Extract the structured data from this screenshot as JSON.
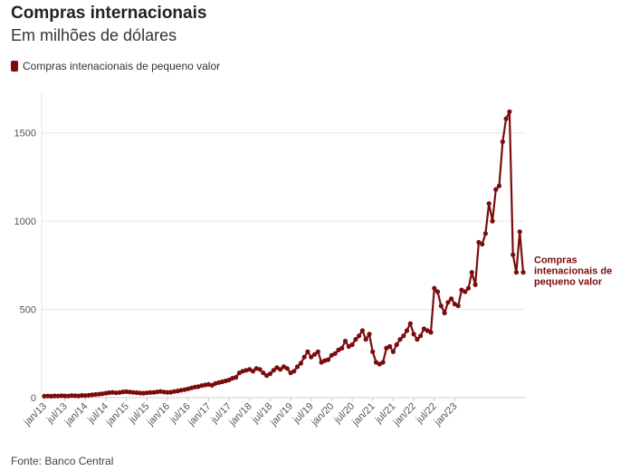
{
  "header": {
    "title": "Compras internacionais",
    "subtitle": "Em milhões de dólares"
  },
  "legend": {
    "label": "Compras intenacionais de pequeno valor"
  },
  "footer": {
    "source": "Fonte: Banco Central"
  },
  "colors": {
    "series": "#7a0c0c",
    "grid": "#e6e6e6",
    "axis": "#cccccc"
  },
  "chart_data": {
    "type": "line",
    "title": "Compras internacionais",
    "subtitle": "Em milhões de dólares",
    "xlabel": "",
    "ylabel": "",
    "ylim": [
      0,
      1750
    ],
    "y_ticks": [
      0,
      500,
      1000,
      1500
    ],
    "x_tick_labels": [
      "jan/13",
      "jul/13",
      "jan/14",
      "jul/14",
      "jan/15",
      "jul/15",
      "jan/16",
      "jul/16",
      "jan/17",
      "jul/17",
      "jan/18",
      "jul/18",
      "jan/19",
      "jul/19",
      "jan/20",
      "jul/20",
      "jan/21",
      "jul/21",
      "jan/22",
      "jul/22",
      "jan/23"
    ],
    "x_tick_month_index": [
      0,
      6,
      12,
      18,
      24,
      30,
      36,
      42,
      48,
      54,
      60,
      66,
      72,
      78,
      84,
      90,
      96,
      102,
      108,
      114,
      120
    ],
    "end_label": [
      "Compras",
      "intenacionais de",
      "pequeno valor"
    ],
    "series": [
      {
        "name": "Compras intenacionais de pequeno valor",
        "start": "jan/13",
        "frequency": "monthly",
        "values": [
          8,
          9,
          8,
          10,
          9,
          11,
          10,
          9,
          12,
          11,
          10,
          13,
          12,
          14,
          16,
          18,
          20,
          22,
          25,
          28,
          30,
          27,
          29,
          33,
          34,
          32,
          30,
          28,
          26,
          25,
          27,
          29,
          30,
          33,
          35,
          32,
          30,
          31,
          35,
          38,
          42,
          45,
          50,
          55,
          60,
          62,
          68,
          72,
          75,
          70,
          80,
          85,
          90,
          95,
          100,
          110,
          115,
          140,
          150,
          155,
          160,
          150,
          165,
          160,
          140,
          125,
          135,
          155,
          170,
          160,
          175,
          165,
          140,
          150,
          175,
          195,
          230,
          260,
          230,
          245,
          260,
          200,
          210,
          215,
          240,
          250,
          270,
          280,
          320,
          290,
          300,
          330,
          350,
          380,
          330,
          360,
          260,
          200,
          190,
          200,
          280,
          290,
          260,
          300,
          330,
          350,
          380,
          420,
          360,
          330,
          350,
          390,
          380,
          370,
          620,
          600,
          520,
          480,
          540,
          560,
          530,
          520,
          610,
          600,
          620,
          710,
          640,
          880,
          870,
          930,
          1100,
          1000,
          1180,
          1200,
          1450,
          1580,
          1620,
          810,
          710,
          940,
          710
        ]
      }
    ]
  }
}
